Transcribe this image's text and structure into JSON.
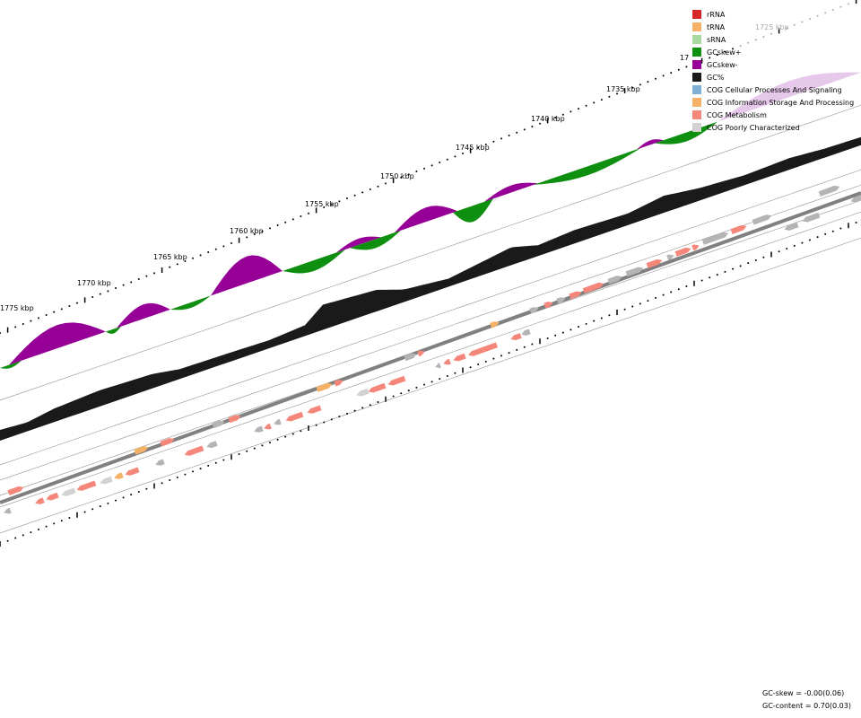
{
  "legend": [
    {
      "label": "rRNA",
      "color": "#d62728"
    },
    {
      "label": "tRNA",
      "color": "#f5b266"
    },
    {
      "label": "sRNA",
      "color": "#a8d9a0"
    },
    {
      "label": "GCskew+",
      "color": "#0f8f0f"
    },
    {
      "label": "GCskew-",
      "color": "#960096"
    },
    {
      "label": "GC%",
      "color": "#1a1a1a"
    },
    {
      "label": "COG Cellular Processes And Signaling",
      "color": "#7fb0d5"
    },
    {
      "label": "COG Information Storage And Processing",
      "color": "#f5b266"
    },
    {
      "label": "COG Metabolism",
      "color": "#f5877a"
    },
    {
      "label": "COG Poorly Characterized",
      "color": "#d2d2d2"
    }
  ],
  "stats": {
    "gc_skew": "GC-skew = -0.00(0.06)",
    "gc_content": "GC-content = 0.70(0.03)"
  },
  "scale": {
    "ticks": [
      {
        "kbp": 1725,
        "label": "1725 kbp",
        "faded": true
      },
      {
        "kbp": 1730,
        "label": "17",
        "faded": false
      },
      {
        "kbp": 1735,
        "label": "1735 kbp",
        "faded": false
      },
      {
        "kbp": 1740,
        "label": "1740 kbp",
        "faded": false
      },
      {
        "kbp": 1745,
        "label": "1745 kbp",
        "faded": false
      },
      {
        "kbp": 1750,
        "label": "1750 kbp",
        "faded": false
      },
      {
        "kbp": 1755,
        "label": "1755 kbp",
        "faded": false
      },
      {
        "kbp": 1760,
        "label": "1760 kbp",
        "faded": false
      },
      {
        "kbp": 1765,
        "label": "1765 kbp",
        "faded": false
      },
      {
        "kbp": 1770,
        "label": "1770 kbp",
        "faded": false
      },
      {
        "kbp": 1775,
        "label": "1775 kbp",
        "faded": false
      }
    ]
  },
  "colors": {
    "skew_pos": "#0f8f0f",
    "skew_neg": "#960096",
    "gc": "#1a1a1a",
    "metabolism": "#f5877a",
    "info_storage": "#f5b266",
    "poorly_characterized": "#d2d2d2",
    "uncategorized": "#b4b4b4",
    "backbone": "#808080"
  }
}
